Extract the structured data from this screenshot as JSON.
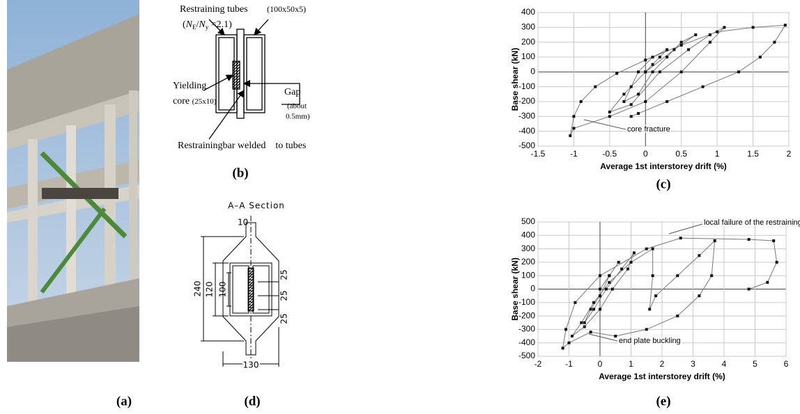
{
  "panels": {
    "a": {
      "label": "(a)"
    },
    "b": {
      "label": "(b)",
      "tubes_title": "Restraining tubes",
      "tubes_size": "(100x50x5)",
      "ratio": [
        "(",
        "N",
        "E",
        "/",
        "N",
        "y",
        " =2.1)"
      ],
      "core": [
        "Yielding",
        "core",
        "(25x10)"
      ],
      "gap": [
        "Gap",
        "(about",
        "0.5mm)"
      ],
      "bar": "Restrainingbar welded    to tubes"
    },
    "c": {
      "label": "(c)"
    },
    "d": {
      "label": "(d)",
      "title": "A–A Section",
      "dims": [
        "10",
        "240",
        "120",
        "100",
        "25",
        "25",
        "25",
        "130"
      ]
    },
    "e": {
      "label": "(e)"
    }
  },
  "chart_data": [
    {
      "type": "line",
      "ylabel": "Base shear (kN)",
      "xlabel": "Average 1st interstorey drift (%)",
      "xlim": [
        -1.5,
        2
      ],
      "xticks": [
        -1.5,
        -1,
        -0.5,
        0,
        0.5,
        1,
        1.5,
        2
      ],
      "ylim": [
        -500,
        400
      ],
      "yticks": [
        -500,
        -400,
        -300,
        -200,
        -100,
        0,
        100,
        200,
        300,
        400
      ],
      "grid": true,
      "annotations": [
        "core fracture"
      ],
      "series": [
        {
          "color": "#777777",
          "marker_color": "#111111",
          "x": [
            0,
            0.1,
            0.2,
            0.3,
            0.1,
            -0.1,
            -0.2,
            -0.3,
            -0.1,
            0.1,
            0.3,
            0.5,
            0.7,
            0.4,
            0,
            -0.3,
            -0.5,
            -0.2,
            0.2,
            0.6,
            0.9,
            1.1,
            0.9,
            0.5,
            0,
            -0.5,
            -1.0,
            -1.05,
            -1.0,
            -0.9,
            -0.7,
            -0.4,
            0,
            0.5,
            1.0,
            1.5,
            1.95,
            1.8,
            1.6,
            1.3,
            0.8,
            0.3,
            -0.1,
            -0.2
          ],
          "values": [
            0,
            50,
            100,
            150,
            100,
            0,
            -100,
            -200,
            -150,
            0,
            100,
            200,
            250,
            150,
            0,
            -150,
            -270,
            -220,
            0,
            150,
            250,
            300,
            200,
            0,
            -200,
            -300,
            -380,
            -430,
            -300,
            -200,
            -100,
            -10,
            80,
            180,
            270,
            300,
            315,
            200,
            100,
            0,
            -100,
            -200,
            -280,
            -300
          ]
        }
      ]
    },
    {
      "type": "line",
      "ylabel": "Base shear (kN)",
      "xlabel": "Average 1st interstorey drift (%)",
      "xlim": [
        -2,
        6
      ],
      "xticks": [
        -2,
        -1,
        0,
        1,
        2,
        3,
        4,
        5,
        6
      ],
      "ylim": [
        -500,
        500
      ],
      "yticks": [
        -500,
        -400,
        -300,
        -200,
        -100,
        0,
        100,
        200,
        300,
        400,
        500
      ],
      "grid": true,
      "annotations": [
        "local failure of the restraining tube",
        "end plate buckling"
      ],
      "series": [
        {
          "color": "#777777",
          "marker_color": "#111111",
          "x": [
            0,
            0.3,
            0.6,
            0.3,
            0,
            -0.3,
            -0.5,
            -0.2,
            0.2,
            0.7,
            1.1,
            0.9,
            0.4,
            0,
            -0.5,
            -0.9,
            -0.6,
            -0.2,
            0.3,
            1,
            1.7,
            1.7,
            1.6,
            1.8,
            2.5,
            3.2,
            3.7,
            3.6,
            3.2,
            2.5,
            1.5,
            0.5,
            -0.3,
            -1.0,
            -1.2,
            -1.1,
            -0.8,
            0,
            1.5,
            2.6,
            4.8,
            5.6,
            5.7,
            5.4,
            4.8
          ],
          "values": [
            0,
            100,
            200,
            100,
            -50,
            -150,
            -250,
            -150,
            0,
            150,
            270,
            150,
            0,
            -150,
            -280,
            -350,
            -250,
            -100,
            50,
            200,
            300,
            100,
            -150,
            -50,
            100,
            250,
            360,
            100,
            -50,
            -200,
            -300,
            -350,
            -320,
            -400,
            -440,
            -300,
            -100,
            100,
            300,
            380,
            370,
            360,
            200,
            50,
            0
          ]
        }
      ]
    }
  ]
}
